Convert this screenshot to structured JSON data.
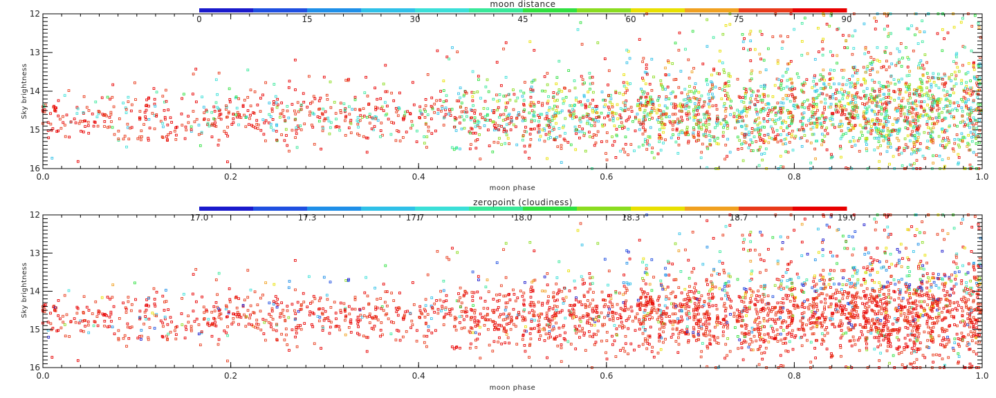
{
  "colors": {
    "palette": [
      "#1a1acc",
      "#1f4fe0",
      "#1f8fe8",
      "#2fc0e8",
      "#3adfd8",
      "#38e89a",
      "#30e040",
      "#8adc20",
      "#e8e000",
      "#f0a020",
      "#e83a1a",
      "#e80000"
    ]
  },
  "chart_data": [
    {
      "type": "scatter",
      "title": "moon distance",
      "xlabel": "moon phase",
      "ylabel": "Sky brightness",
      "xlim": [
        0.0,
        1.0
      ],
      "ylim": [
        16,
        12
      ],
      "y_reversed": true,
      "x_ticks": [
        "0.0",
        "0.2",
        "0.4",
        "0.6",
        "0.8",
        "1.0"
      ],
      "y_ticks": [
        "12",
        "13",
        "14",
        "15",
        "16"
      ],
      "colorbar": {
        "label": "moon distance",
        "ticks": [
          "0",
          "15",
          "30",
          "45",
          "60",
          "75",
          "90"
        ],
        "range": [
          0,
          90
        ]
      },
      "grid": false,
      "points_description": "dense cloud of open-square markers; sky brightness mostly 14.0-15.5 for all phases, spreading to 12-16 as moon phase approaches 1.0; color encodes moon distance (red=90 dominant at low phase, green/cyan more common at high phase)"
    },
    {
      "type": "scatter",
      "title": "zeropoint (cloudiness)",
      "xlabel": "moon phase",
      "ylabel": "Sky brightness",
      "xlim": [
        0.0,
        1.0
      ],
      "ylim": [
        16,
        12
      ],
      "y_reversed": true,
      "x_ticks": [
        "0.0",
        "0.2",
        "0.4",
        "0.6",
        "0.8",
        "1.0"
      ],
      "y_ticks": [
        "12",
        "13",
        "14",
        "15",
        "16"
      ],
      "colorbar": {
        "label": "zeropoint (cloudiness)",
        "ticks": [
          "17.0",
          "17.3",
          "17.7",
          "18.0",
          "18.3",
          "18.7",
          "19.0"
        ],
        "range": [
          17.0,
          19.0
        ]
      },
      "grid": false,
      "points_description": "same points as upper panel; color encodes zeropoint, overwhelmingly red (19.0), with scattered blue/green/yellow points at brighter sky values"
    }
  ]
}
